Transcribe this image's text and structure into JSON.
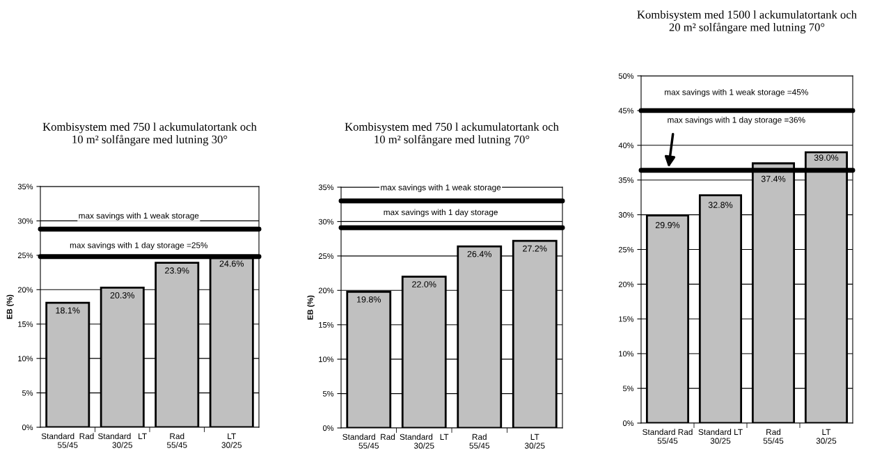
{
  "chart_data": [
    {
      "type": "bar",
      "title": "Kombisystem med 750 l ackumulatortank och\n10 m² solfångare med lutning 30°",
      "ylabel": "EB (%)",
      "categories": [
        "Standard  Rad\n55/45",
        "Standard   LT\n30/25",
        "Rad\n55/45",
        "LT\n30/25"
      ],
      "series": [
        {
          "color": "#c0c0c0",
          "values": [
            18.1,
            20.3,
            23.9,
            24.6
          ]
        }
      ],
      "value_labels": [
        "18.1%",
        "20.3%",
        "23.9%",
        "24.6%"
      ],
      "ylim": [
        0,
        35
      ],
      "yticks": [
        {
          "value": 0,
          "label": "0%"
        },
        {
          "value": 5,
          "label": "5%"
        },
        {
          "value": 10,
          "label": "10%"
        },
        {
          "value": 15,
          "label": "15%"
        },
        {
          "value": 20,
          "label": "20%"
        },
        {
          "value": 25,
          "label": "25%"
        },
        {
          "value": 30,
          "label": "30%"
        },
        {
          "value": 35,
          "label": "35%"
        }
      ],
      "grid": "y",
      "ref_lines": [
        {
          "axis": "y",
          "value": 28.8,
          "label": "max savings with 1 weak storage",
          "color": "#000000"
        },
        {
          "axis": "y",
          "value": 24.8,
          "label": "max savings with 1 day storage =25%",
          "color": "#000000"
        }
      ]
    },
    {
      "type": "bar",
      "title": "Kombisystem med 750 l ackumulatortank och\n10 m² solfångare med lutning 70°",
      "ylabel": "EB (%)",
      "categories": [
        "Standard  Rad\n55/45",
        "Standard   LT\n30/25",
        "Rad\n55/45",
        "LT\n30/25"
      ],
      "series": [
        {
          "color": "#c0c0c0",
          "values": [
            19.8,
            22.0,
            26.4,
            27.2
          ]
        }
      ],
      "value_labels": [
        "19.8%",
        "22.0%",
        "26.4%",
        "27.2%"
      ],
      "ylim": [
        0,
        35
      ],
      "yticks": [
        {
          "value": 0,
          "label": "0%"
        },
        {
          "value": 5,
          "label": "5%"
        },
        {
          "value": 10,
          "label": "10%"
        },
        {
          "value": 15,
          "label": "15%"
        },
        {
          "value": 20,
          "label": "20%"
        },
        {
          "value": 25,
          "label": "25%"
        },
        {
          "value": 30,
          "label": "30%"
        },
        {
          "value": 35,
          "label": "35%"
        }
      ],
      "grid": "y",
      "ref_lines": [
        {
          "axis": "y",
          "value": 33.0,
          "label": "max savings with 1 weak storage",
          "color": "#000000"
        },
        {
          "axis": "y",
          "value": 29.1,
          "label": "max savings with 1 day storage",
          "color": "#000000"
        }
      ]
    },
    {
      "type": "bar",
      "title": "Kombisystem med 1500 l ackumulatortank och\n20 m² solfångare med lutning 70°",
      "categories": [
        "Standard Rad\n55/45",
        "Standard LT\n30/25",
        "Rad\n55/45",
        "LT\n30/25"
      ],
      "series": [
        {
          "color": "#c0c0c0",
          "values": [
            29.9,
            32.8,
            37.4,
            39.0
          ]
        }
      ],
      "value_labels": [
        "29.9%",
        "32.8%",
        "37.4%",
        "39.0%"
      ],
      "ylim": [
        0,
        50
      ],
      "yticks": [
        {
          "value": 0,
          "label": "0%"
        },
        {
          "value": 5,
          "label": "5%"
        },
        {
          "value": 10,
          "label": "10%"
        },
        {
          "value": 15,
          "label": "15%"
        },
        {
          "value": 20,
          "label": "20%"
        },
        {
          "value": 25,
          "label": "25%"
        },
        {
          "value": 30,
          "label": "30%"
        },
        {
          "value": 35,
          "label": "35%"
        },
        {
          "value": 40,
          "label": "40%"
        },
        {
          "value": 45,
          "label": "45%"
        },
        {
          "value": 50,
          "label": "50%"
        }
      ],
      "grid": "y",
      "ref_lines": [
        {
          "axis": "y",
          "value": 45.0,
          "label": "max savings with 1 weak storage =45%",
          "color": "#000000"
        },
        {
          "axis": "y",
          "value": 36.4,
          "label": "max savings with 1 day storage =36%",
          "color": "#000000"
        }
      ]
    }
  ]
}
